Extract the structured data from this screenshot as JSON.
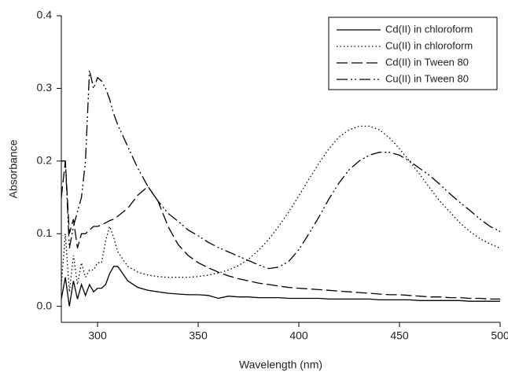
{
  "chart_data": {
    "type": "line",
    "x_label": "Wavelength (nm)",
    "y_label": "Absorbance",
    "xlim": [
      282,
      500
    ],
    "ylim": [
      -0.022,
      0.4
    ],
    "xticks": [
      300,
      350,
      400,
      450,
      500
    ],
    "yticks": [
      {
        "value": 0,
        "label": "0.0"
      },
      0.1,
      0.2,
      0.3,
      0.4
    ],
    "legend": "upper right",
    "x": [
      282,
      284,
      286,
      288,
      290,
      292,
      294,
      296,
      298,
      300,
      302,
      304,
      306,
      308,
      310,
      315,
      320,
      325,
      330,
      335,
      340,
      345,
      350,
      355,
      360,
      365,
      370,
      375,
      380,
      385,
      390,
      395,
      400,
      405,
      410,
      415,
      420,
      425,
      430,
      435,
      440,
      445,
      450,
      455,
      460,
      465,
      470,
      475,
      480,
      485,
      490,
      495,
      500
    ],
    "series": [
      {
        "name": "Cd(II) in chloroform",
        "color": "#000000",
        "line_style": "solid",
        "values": [
          0.01,
          0.04,
          0.0,
          0.035,
          0.01,
          0.03,
          0.015,
          0.03,
          0.02,
          0.025,
          0.025,
          0.03,
          0.045,
          0.055,
          0.055,
          0.035,
          0.026,
          0.022,
          0.02,
          0.018,
          0.017,
          0.016,
          0.016,
          0.015,
          0.011,
          0.014,
          0.013,
          0.013,
          0.012,
          0.012,
          0.012,
          0.011,
          0.011,
          0.011,
          0.011,
          0.01,
          0.01,
          0.01,
          0.01,
          0.01,
          0.009,
          0.009,
          0.009,
          0.009,
          0.008,
          0.008,
          0.008,
          0.008,
          0.008,
          0.007,
          0.007,
          0.007,
          0.007
        ]
      },
      {
        "name": "Cu(II) in chloroform",
        "color": "#000000",
        "line_style": "dotted",
        "values": [
          0.03,
          0.1,
          0.02,
          0.07,
          0.03,
          0.06,
          0.04,
          0.05,
          0.05,
          0.06,
          0.06,
          0.09,
          0.11,
          0.095,
          0.075,
          0.055,
          0.047,
          0.043,
          0.041,
          0.04,
          0.04,
          0.04,
          0.041,
          0.043,
          0.046,
          0.05,
          0.056,
          0.065,
          0.077,
          0.092,
          0.11,
          0.13,
          0.152,
          0.175,
          0.197,
          0.217,
          0.233,
          0.243,
          0.248,
          0.248,
          0.243,
          0.232,
          0.217,
          0.2,
          0.182,
          0.163,
          0.145,
          0.13,
          0.115,
          0.103,
          0.093,
          0.086,
          0.08
        ]
      },
      {
        "name": "Cd(II) in Tween 80",
        "color": "#000000",
        "line_style": "dashed",
        "values": [
          0.15,
          0.2,
          0.1,
          0.12,
          0.08,
          0.1,
          0.1,
          0.105,
          0.11,
          0.11,
          0.112,
          0.115,
          0.118,
          0.12,
          0.124,
          0.135,
          0.153,
          0.165,
          0.145,
          0.11,
          0.085,
          0.07,
          0.06,
          0.053,
          0.047,
          0.042,
          0.038,
          0.035,
          0.032,
          0.03,
          0.028,
          0.026,
          0.025,
          0.024,
          0.023,
          0.022,
          0.021,
          0.02,
          0.019,
          0.018,
          0.017,
          0.016,
          0.016,
          0.015,
          0.014,
          0.013,
          0.013,
          0.012,
          0.012,
          0.011,
          0.011,
          0.01,
          0.01
        ]
      },
      {
        "name": "Cu(II) in Tween 80",
        "color": "#000000",
        "line_style": "dashdotdot",
        "values": [
          0.2,
          0.2,
          0.08,
          0.11,
          0.13,
          0.15,
          0.2,
          0.325,
          0.3,
          0.315,
          0.31,
          0.3,
          0.285,
          0.265,
          0.25,
          0.22,
          0.19,
          0.165,
          0.145,
          0.128,
          0.117,
          0.105,
          0.097,
          0.088,
          0.081,
          0.075,
          0.069,
          0.063,
          0.057,
          0.052,
          0.054,
          0.062,
          0.078,
          0.1,
          0.123,
          0.148,
          0.17,
          0.188,
          0.2,
          0.208,
          0.212,
          0.212,
          0.208,
          0.2,
          0.19,
          0.18,
          0.168,
          0.155,
          0.143,
          0.132,
          0.12,
          0.11,
          0.103
        ]
      }
    ]
  }
}
